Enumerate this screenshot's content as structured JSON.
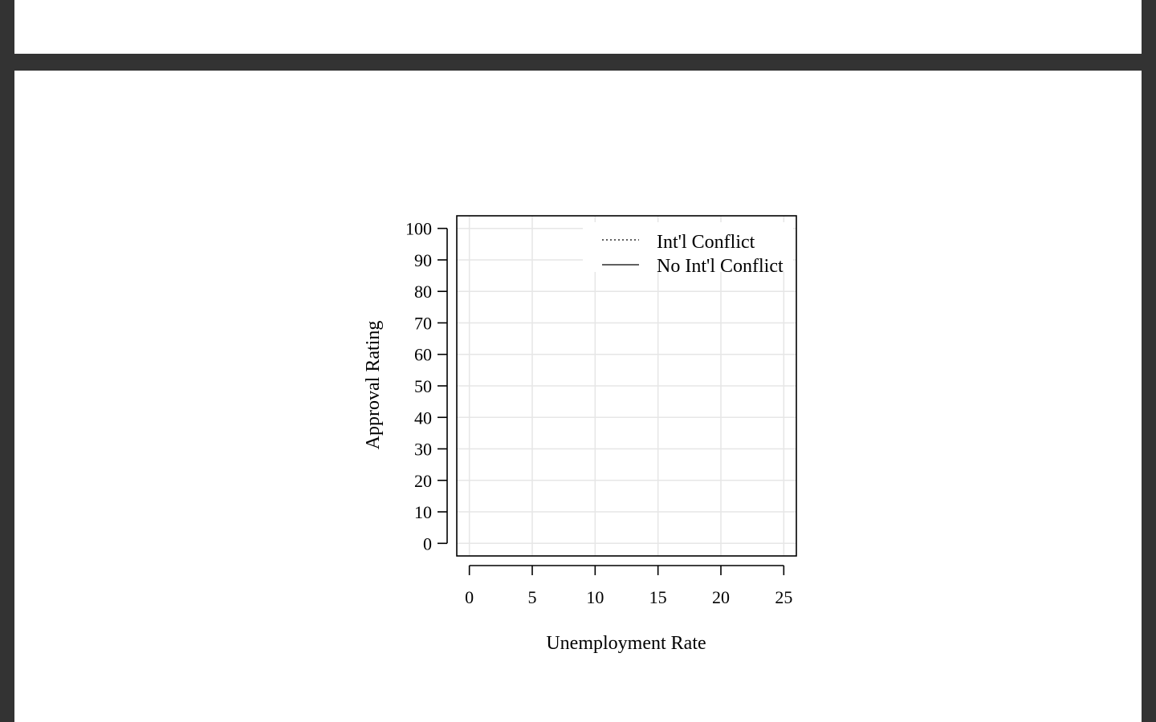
{
  "chart_data": {
    "type": "line",
    "title": "",
    "xlabel": "Unemployment Rate",
    "ylabel": "Approval Rating",
    "xlim": [
      -1,
      26
    ],
    "ylim": [
      -4,
      104
    ],
    "x_ticks": [
      0,
      5,
      10,
      15,
      20,
      25
    ],
    "y_ticks": [
      0,
      10,
      20,
      30,
      40,
      50,
      60,
      70,
      80,
      90,
      100
    ],
    "x_tick_labels": [
      "0",
      "5",
      "10",
      "15",
      "20",
      "25"
    ],
    "y_tick_labels": [
      "0",
      "10",
      "20",
      "30",
      "40",
      "50",
      "60",
      "70",
      "80",
      "90",
      "100"
    ],
    "grid": true,
    "legend_position": "top-right",
    "series": [
      {
        "name": "Int'l Conflict",
        "line_style": "dotted",
        "color": "#000000",
        "x": [],
        "values": []
      },
      {
        "name": "No Int'l Conflict",
        "line_style": "solid",
        "color": "#000000",
        "x": [],
        "values": []
      }
    ]
  }
}
